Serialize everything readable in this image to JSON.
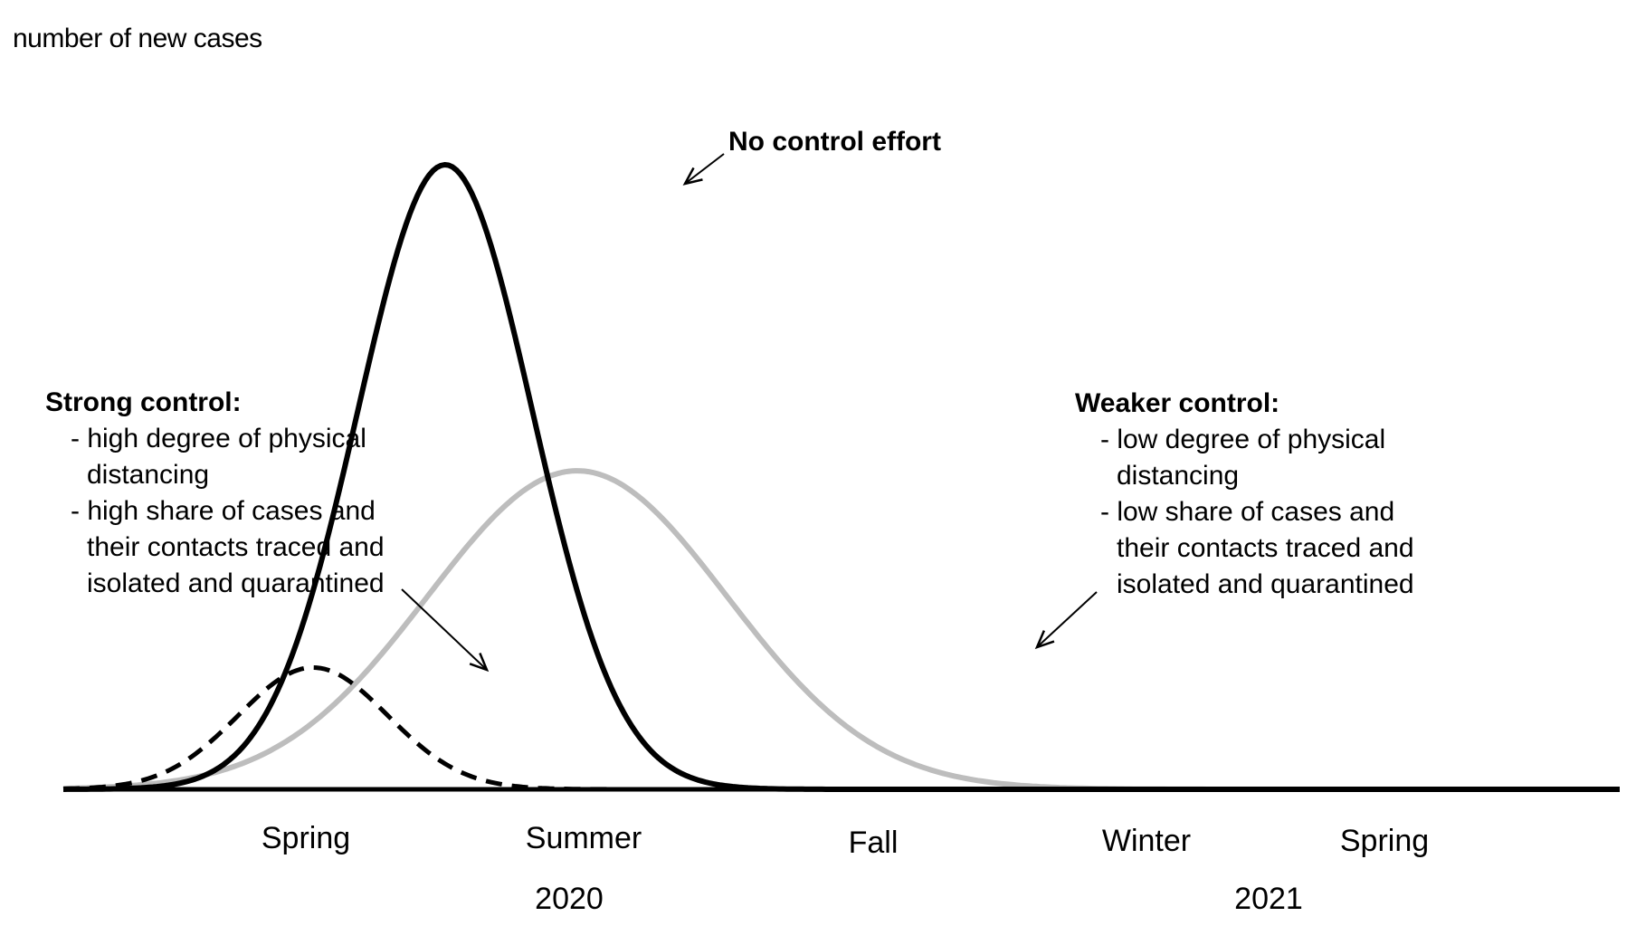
{
  "chart_data": {
    "type": "line",
    "title": "",
    "ylabel": "number of new cases",
    "xlabel": "",
    "x_ticks": [
      "Spring",
      "Summer",
      "Fall",
      "Winter",
      "Spring"
    ],
    "years": [
      "2020",
      "2021"
    ],
    "x_range": [
      0,
      5.3
    ],
    "ylim": [
      0,
      1.0
    ],
    "series": [
      {
        "name": "No control effort",
        "style": "solid",
        "color": "#000000",
        "peak_x": 1.3,
        "peak_y": 1.0,
        "width": 0.42
      },
      {
        "name": "Weaker control",
        "style": "solid",
        "color": "#bdbdbd",
        "peak_x": 1.75,
        "peak_y": 0.51,
        "width": 0.72
      },
      {
        "name": "Strong control",
        "style": "dashed",
        "color": "#000000",
        "peak_x": 0.85,
        "peak_y": 0.195,
        "width": 0.36
      }
    ],
    "annotations": {
      "no_control": {
        "label": "No control effort"
      },
      "strong": {
        "title": "Strong control:",
        "lines": [
          "- high degree of physical",
          "distancing",
          "- high share of cases and",
          "their contacts traced and",
          "isolated and quarantined"
        ]
      },
      "weaker": {
        "title": "Weaker control:",
        "lines": [
          "- low degree of physical",
          "distancing",
          "- low share of cases and",
          "their contacts traced and",
          "isolated and quarantined"
        ]
      }
    },
    "grid": false,
    "legend": "none"
  }
}
